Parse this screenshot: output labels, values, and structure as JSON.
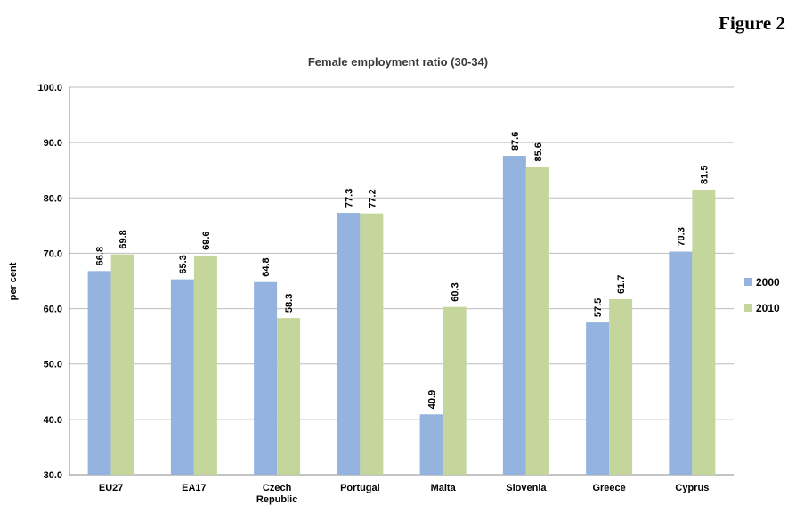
{
  "figure_label": "Figure 2",
  "colors": {
    "series_2000": "#94B3DE",
    "series_2010": "#C4D69B",
    "grid": "#bdbdbd",
    "axis": "#888888"
  },
  "chart_data": {
    "type": "bar",
    "title": "Female employment ratio (30-34)",
    "xlabel": "",
    "ylabel": "per cent",
    "ylim": [
      30,
      100
    ],
    "yticks": [
      "30.0",
      "40.0",
      "50.0",
      "60.0",
      "70.0",
      "80.0",
      "90.0",
      "100.0"
    ],
    "grid": true,
    "legend_position": "right",
    "categories": [
      "EU27",
      "EA17",
      "Czech Republic",
      "Portugal",
      "Malta",
      "Slovenia",
      "Greece",
      "Cyprus"
    ],
    "series": [
      {
        "name": "2000",
        "values": [
          66.8,
          65.3,
          64.8,
          77.3,
          40.9,
          87.6,
          57.5,
          70.3
        ]
      },
      {
        "name": "2010",
        "values": [
          69.8,
          69.6,
          58.3,
          77.2,
          60.3,
          85.6,
          61.7,
          81.5
        ]
      }
    ]
  }
}
